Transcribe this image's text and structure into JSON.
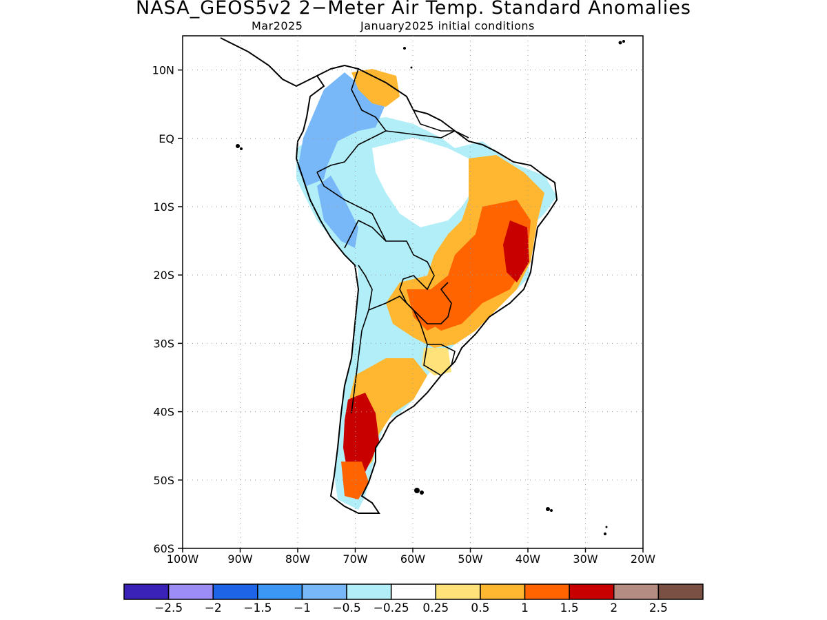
{
  "header": {
    "title": "NASA_GEOS5v2 2−Meter Air Temp. Standard Anomalies",
    "subtitle_left": "Mar2025",
    "subtitle_right": "January2025 initial conditions"
  },
  "map": {
    "region": "South America",
    "lon_range": [
      -100,
      -20
    ],
    "lat_range": [
      -60,
      15
    ],
    "lat_ticks": [
      {
        "value": 10,
        "label": "10N"
      },
      {
        "value": 0,
        "label": "EQ"
      },
      {
        "value": -10,
        "label": "10S"
      },
      {
        "value": -20,
        "label": "20S"
      },
      {
        "value": -30,
        "label": "30S"
      },
      {
        "value": -40,
        "label": "40S"
      },
      {
        "value": -50,
        "label": "50S"
      },
      {
        "value": -60,
        "label": "60S"
      }
    ],
    "lon_ticks": [
      {
        "value": -100,
        "label": "100W"
      },
      {
        "value": -90,
        "label": "90W"
      },
      {
        "value": -80,
        "label": "80W"
      },
      {
        "value": -70,
        "label": "70W"
      },
      {
        "value": -60,
        "label": "60W"
      },
      {
        "value": -50,
        "label": "50W"
      },
      {
        "value": -40,
        "label": "40W"
      },
      {
        "value": -30,
        "label": "30W"
      },
      {
        "value": -20,
        "label": "20W"
      }
    ],
    "gridlines": "dotted"
  },
  "colorbar": {
    "colors": [
      "#3a22b8",
      "#9c8cf6",
      "#1e64e6",
      "#3c96f4",
      "#78b8f8",
      "#b2eef8",
      "#ffffff",
      "#ffe27a",
      "#ffb732",
      "#ff6400",
      "#c80000",
      "#b48c82",
      "#7a5044"
    ],
    "labels": [
      "−2.5",
      "−2",
      "−1.5",
      "−1",
      "−0.5",
      "−0.25",
      "0.25",
      "0.5",
      "1",
      "1.5",
      "2",
      "2.5"
    ]
  },
  "anomaly_regions": [
    {
      "name": "Colombia / Venezuela (north)",
      "anomaly": "-0.5 to -1",
      "color": "#78b8f8"
    },
    {
      "name": "Ecuador / Peru",
      "anomaly": "-0.5 to -1",
      "color": "#78b8f8"
    },
    {
      "name": "Western Amazon",
      "anomaly": "-0.25 to -0.5",
      "color": "#b2eef8"
    },
    {
      "name": "Central Amazon",
      "anomaly": "-0.25 to 0.25",
      "color": "#ffffff"
    },
    {
      "name": "Eastern Brazil",
      "anomaly": "1 to 1.5",
      "color": "#ff6400"
    },
    {
      "name": "Eastern Brazil core",
      "anomaly": "1.5 to 2",
      "color": "#c80000"
    },
    {
      "name": "Paraguay / Southern Brazil",
      "anomaly": "1 to 1.5",
      "color": "#ff6400"
    },
    {
      "name": "Central Argentina",
      "anomaly": "0.5 to 1",
      "color": "#ffb732"
    },
    {
      "name": "Patagonia",
      "anomaly": "1.5 to 2",
      "color": "#c80000"
    }
  ]
}
